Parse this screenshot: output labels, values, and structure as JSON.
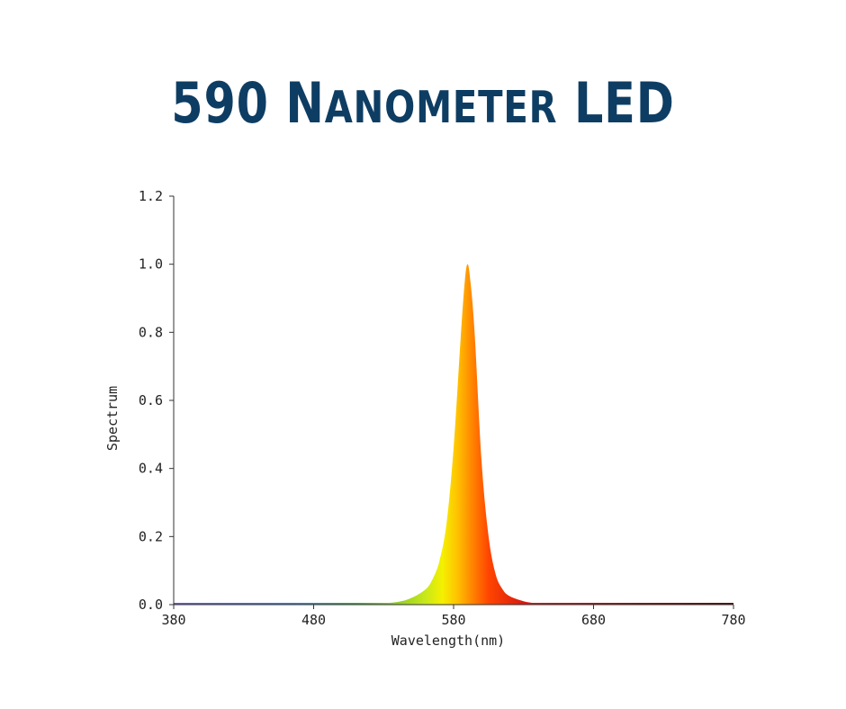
{
  "page": {
    "title_lead": "590 ",
    "title_caps1_first": "N",
    "title_caps1_rest": "ANOMETER",
    "title_caps2": " LED",
    "title_color": "#0e3d63"
  },
  "chart_data": {
    "type": "area",
    "title": "590 Nanometer LED",
    "xlabel": "Wavelength(nm)",
    "ylabel": "Spectrum",
    "xlim": [
      380,
      780
    ],
    "ylim": [
      0,
      1.2
    ],
    "xticks": [
      380,
      480,
      580,
      680,
      780
    ],
    "yticks": [
      "0.0",
      "0.2",
      "0.4",
      "0.6",
      "0.8",
      "1.0",
      "1.2"
    ],
    "grid": false,
    "series": [
      {
        "x": [
          380,
          480,
          520,
          540,
          550,
          560,
          565,
          570,
          575,
          580,
          585,
          588,
          590,
          592,
          595,
          600,
          605,
          610,
          615,
          620,
          630,
          640,
          660,
          700,
          780
        ],
        "y": [
          0.0,
          0.0,
          0.002,
          0.008,
          0.02,
          0.045,
          0.075,
          0.13,
          0.24,
          0.46,
          0.78,
          0.95,
          1.0,
          0.95,
          0.8,
          0.42,
          0.2,
          0.09,
          0.045,
          0.025,
          0.01,
          0.004,
          0.0015,
          0.0,
          0.0
        ]
      }
    ],
    "gradient_stops": [
      {
        "wavelength": 380,
        "color": "#6a5acd"
      },
      {
        "wavelength": 470,
        "color": "#3a7fc8"
      },
      {
        "wavelength": 510,
        "color": "#3fa63f"
      },
      {
        "wavelength": 560,
        "color": "#c8e81a"
      },
      {
        "wavelength": 572,
        "color": "#f5f000"
      },
      {
        "wavelength": 583,
        "color": "#ffc000"
      },
      {
        "wavelength": 592,
        "color": "#ff8c00"
      },
      {
        "wavelength": 605,
        "color": "#ff4500"
      },
      {
        "wavelength": 630,
        "color": "#d81a10"
      },
      {
        "wavelength": 700,
        "color": "#9b1010"
      },
      {
        "wavelength": 780,
        "color": "#5a0a0a"
      }
    ]
  }
}
